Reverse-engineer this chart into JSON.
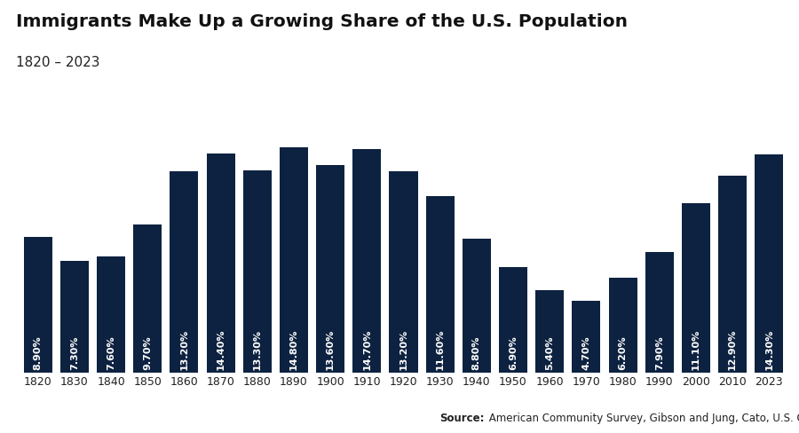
{
  "title": "Immigrants Make Up a Growing Share of the U.S. Population",
  "subtitle": "1820 – 2023",
  "source_bold": "Source:",
  "source_rest": " American Community Survey, Gibson and Jung, Cato, U.S. Global Investors",
  "bar_color": "#0d2240",
  "background_color": "#ffffff",
  "label_color": "#ffffff",
  "categories": [
    "1820",
    "1830",
    "1840",
    "1850",
    "1860",
    "1870",
    "1880",
    "1890",
    "1900",
    "1910",
    "1920",
    "1930",
    "1940",
    "1950",
    "1960",
    "1970",
    "1980",
    "1990",
    "2000",
    "2010",
    "2023"
  ],
  "values": [
    8.9,
    7.3,
    7.6,
    9.7,
    13.2,
    14.4,
    13.3,
    14.8,
    13.6,
    14.7,
    13.2,
    11.6,
    8.8,
    6.9,
    5.4,
    4.7,
    6.2,
    7.9,
    11.1,
    12.9,
    14.3
  ],
  "labels": [
    "8.90%",
    "7.30%",
    "7.60%",
    "9.70%",
    "13.20%",
    "14.40%",
    "13.30%",
    "14.80%",
    "13.60%",
    "14.70%",
    "13.20%",
    "11.60%",
    "8.80%",
    "6.90%",
    "5.40%",
    "4.70%",
    "6.20%",
    "7.90%",
    "11.10%",
    "12.90%",
    "14.30%"
  ],
  "ylim": [
    0,
    16.5
  ],
  "title_fontsize": 14.5,
  "subtitle_fontsize": 11,
  "label_fontsize": 8.0,
  "tick_fontsize": 9,
  "source_fontsize": 8.5,
  "bar_width": 0.78
}
